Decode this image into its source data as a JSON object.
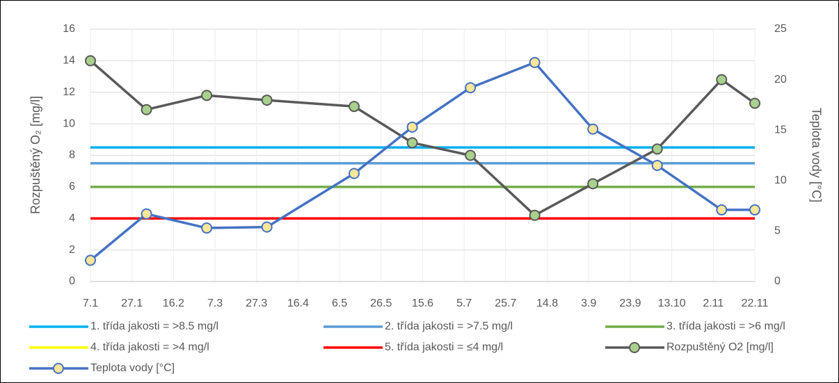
{
  "chart_data": {
    "type": "line",
    "ylabel": "Rozpuštěný O₂ [mg/l]",
    "y2label": "Teplota vody [°C]",
    "x": [
      "7.1",
      "3.2",
      "3.3",
      "1.4",
      "13.5",
      "10.6",
      "8.7",
      "8.8",
      "5.9",
      "6.10",
      "6.11",
      "22.11"
    ],
    "xlim": [
      "7.1",
      "22.11"
    ],
    "xticks": [
      "7.1",
      "27.1",
      "16.2",
      "7.3",
      "27.3",
      "16.4",
      "6.5",
      "26.5",
      "15.6",
      "5.7",
      "25.7",
      "14.8",
      "3.9",
      "23.9",
      "13.10",
      "2.11",
      "22.11"
    ],
    "ylim": [
      0,
      16
    ],
    "yticks": [
      0,
      2,
      4,
      6,
      8,
      10,
      12,
      14,
      16
    ],
    "y2lim": [
      0,
      25
    ],
    "y2ticks": [
      0,
      5,
      10,
      15,
      20,
      25
    ],
    "grid": true,
    "legend": "bottom",
    "series": [
      {
        "name": "1. třída jakosti = >8.5 mg/l",
        "color": "#00b0f0",
        "values": [
          8.5,
          8.5,
          8.5,
          8.5,
          8.5,
          8.5,
          8.5,
          8.5,
          8.5,
          8.5,
          8.5,
          8.5
        ]
      },
      {
        "name": "2. třída jakosti = >7.5 mg/l",
        "color": "#5b9bd5",
        "values": [
          7.5,
          7.5,
          7.5,
          7.5,
          7.5,
          7.5,
          7.5,
          7.5,
          7.5,
          7.5,
          7.5,
          7.5
        ]
      },
      {
        "name": "3. třída jakosti = >6 mg/l",
        "color": "#70ad47",
        "values": [
          6,
          6,
          6,
          6,
          6,
          6,
          6,
          6,
          6,
          6,
          6,
          6
        ]
      },
      {
        "name": "4. třída jakosti = >4 mg/l",
        "color": "#ffff00",
        "values": [
          4,
          4,
          4,
          4,
          4,
          4,
          4,
          4,
          4,
          4,
          4,
          4
        ]
      },
      {
        "name": "5. třída jakosti = ≤4 mg/l",
        "color": "#ff0000",
        "values": [
          4,
          4,
          4,
          4,
          4,
          4,
          4,
          4,
          4,
          4,
          4,
          4
        ]
      },
      {
        "name": "Rozpuštěný O2 [mg/l]",
        "color": "#595959",
        "marker_color": "#a9d18e",
        "values": [
          14.0,
          10.9,
          11.8,
          11.5,
          11.1,
          8.8,
          8.0,
          4.2,
          6.2,
          8.4,
          12.8,
          11.3
        ]
      },
      {
        "name": "Teplota vody [°C]",
        "color": "#4472c4",
        "marker_color": "#ffe699",
        "axis": "y2",
        "values": [
          2.1,
          6.7,
          5.3,
          5.4,
          10.7,
          15.3,
          19.2,
          21.7,
          15.1,
          11.5,
          7.1,
          7.1
        ]
      }
    ]
  }
}
